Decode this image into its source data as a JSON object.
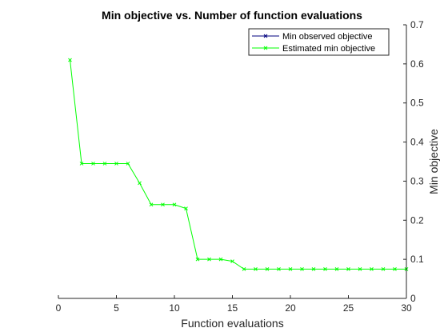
{
  "chart_data": {
    "type": "line",
    "title": "Min objective vs. Number of function evaluations",
    "xlabel": "Function evaluations",
    "ylabel": "Min objective",
    "xlim": [
      0,
      30
    ],
    "ylim": [
      0,
      0.7
    ],
    "xticks": [
      "0",
      "5",
      "10",
      "15",
      "20",
      "25",
      "30"
    ],
    "yticks": [
      "0",
      "0.1",
      "0.2",
      "0.3",
      "0.4",
      "0.5",
      "0.6",
      "0.7"
    ],
    "y_axis_location": "right",
    "grid": false,
    "legend_location": "top-right",
    "series": [
      {
        "name": "Min observed objective",
        "color": "#00007F",
        "marker": "x",
        "x": [],
        "y": []
      },
      {
        "name": "Estimated min objective",
        "color": "#00FF00",
        "marker": "x",
        "x": [
          1,
          2,
          3,
          4,
          5,
          6,
          7,
          8,
          9,
          10,
          11,
          12,
          13,
          14,
          15,
          16,
          17,
          18,
          19,
          20,
          21,
          22,
          23,
          24,
          25,
          26,
          27,
          28,
          29,
          30
        ],
        "y": [
          0.61,
          0.345,
          0.345,
          0.345,
          0.345,
          0.345,
          0.295,
          0.24,
          0.24,
          0.24,
          0.23,
          0.1,
          0.1,
          0.1,
          0.095,
          0.075,
          0.075,
          0.075,
          0.075,
          0.075,
          0.075,
          0.075,
          0.075,
          0.075,
          0.075,
          0.075,
          0.075,
          0.075,
          0.075,
          0.075
        ]
      }
    ]
  }
}
